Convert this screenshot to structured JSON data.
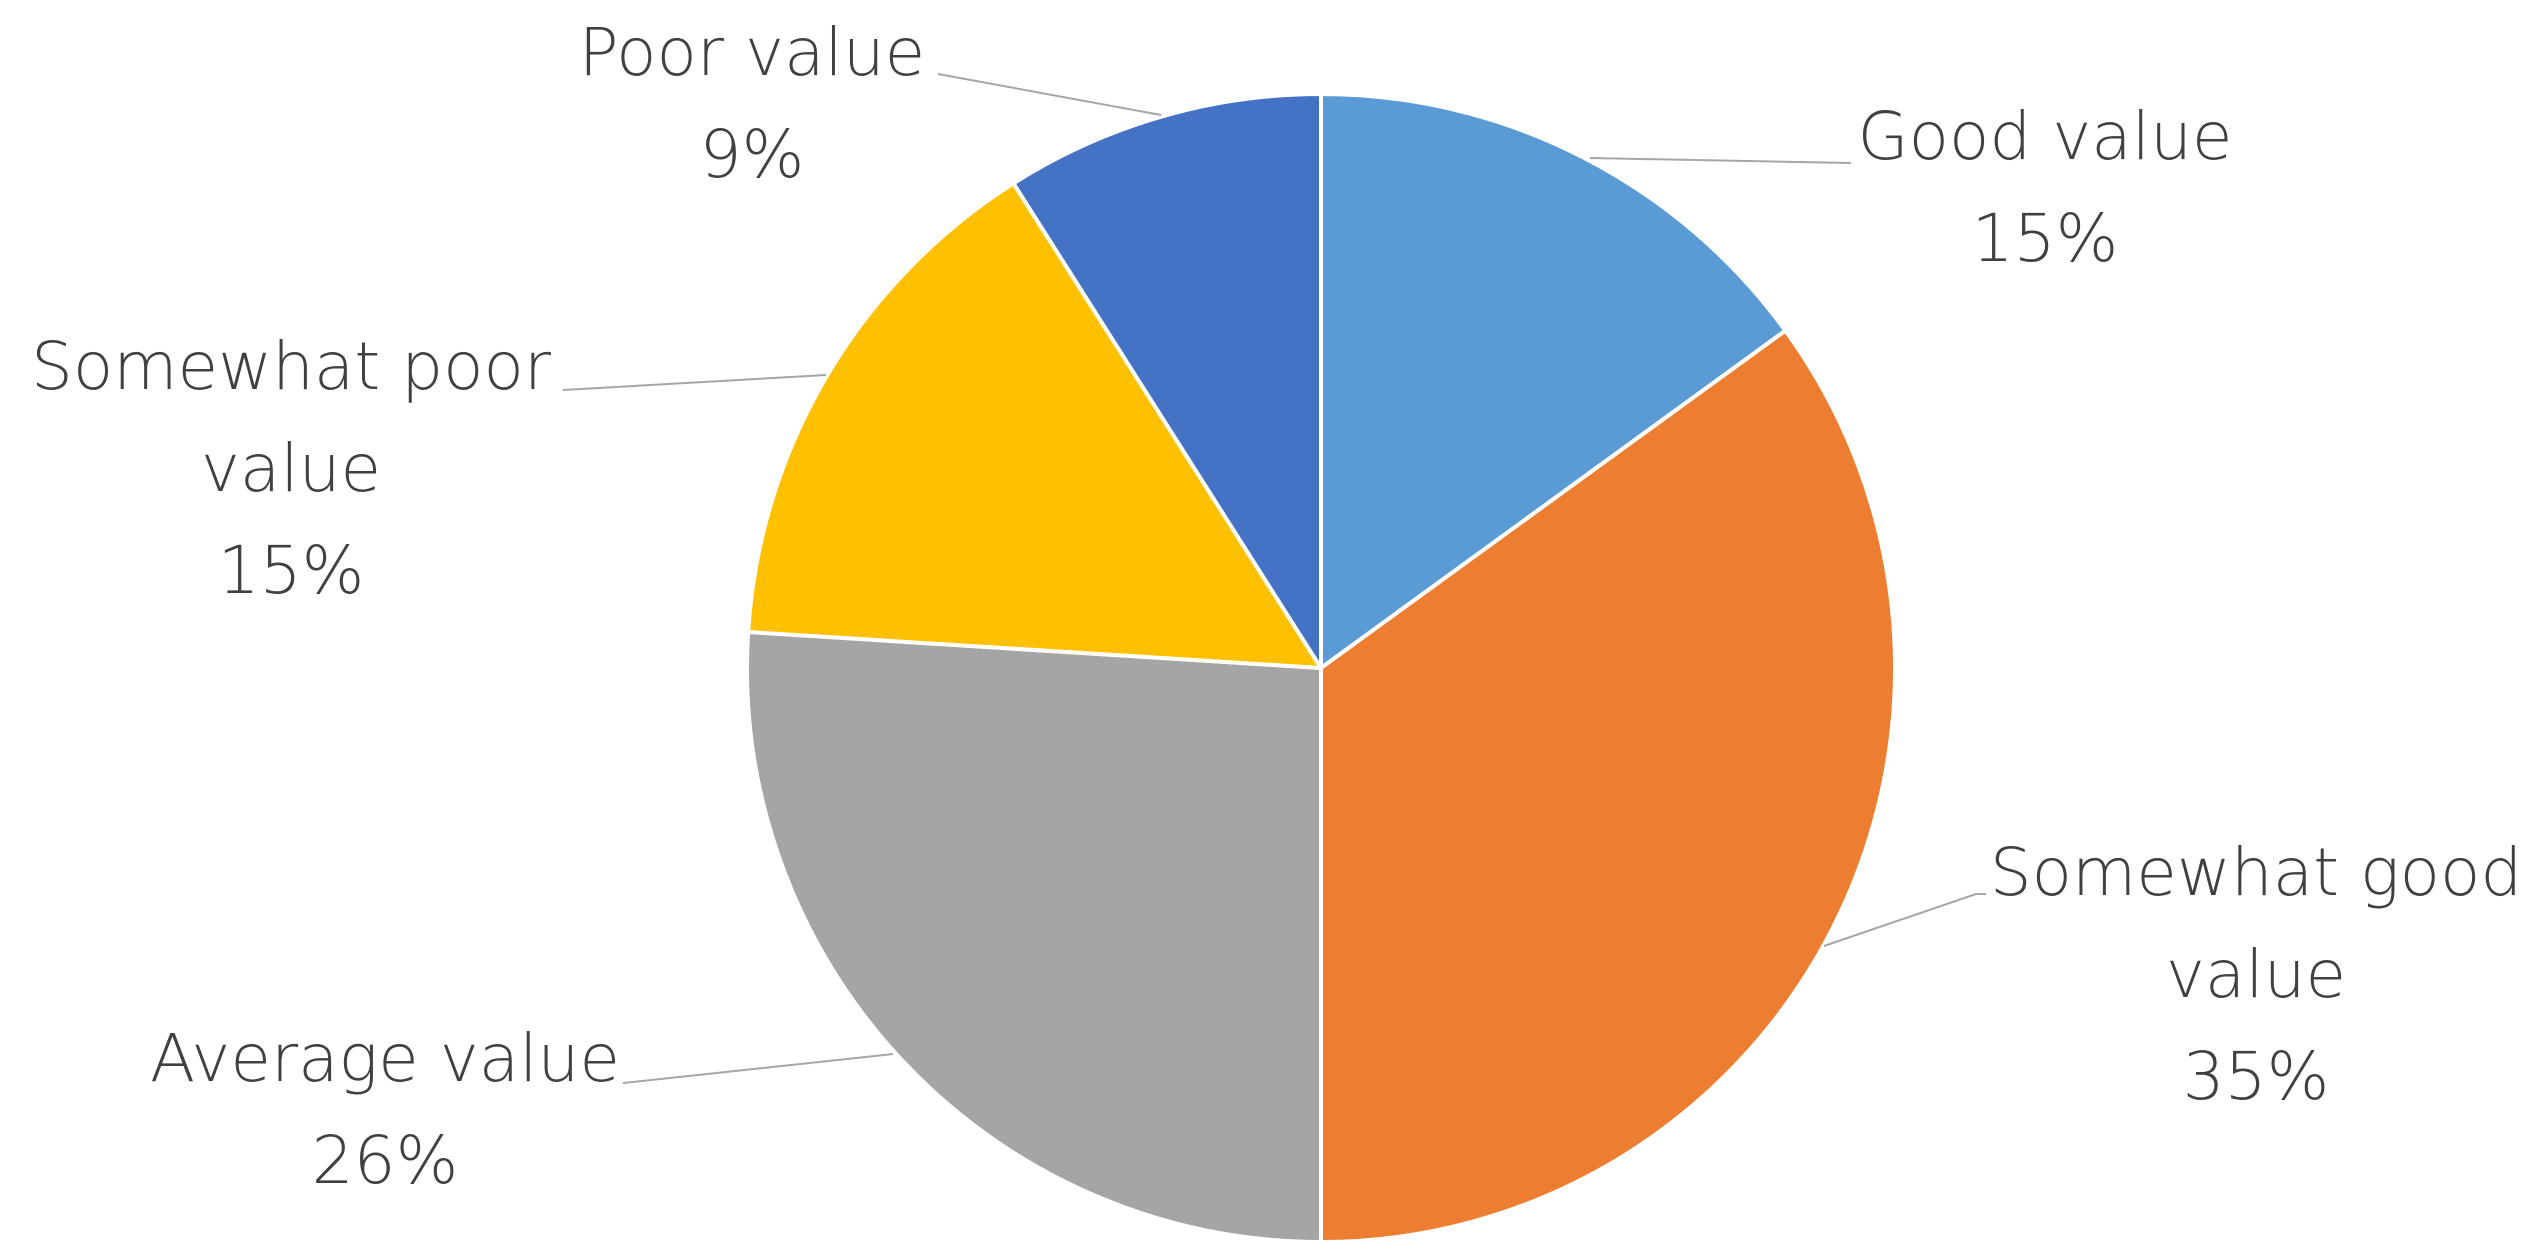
{
  "chart_data": {
    "type": "pie",
    "categories": [
      "Good value",
      "Somewhat good value",
      "Average value",
      "Somewhat poor value",
      "Poor value"
    ],
    "values": [
      15,
      35,
      26,
      15,
      9
    ],
    "value_labels": [
      "15%",
      "35%",
      "26%",
      "15%",
      "9%"
    ],
    "colors": [
      "#5b9bd5",
      "#ed7d31",
      "#a5a5a5",
      "#ffc000",
      "#4472c4"
    ]
  }
}
